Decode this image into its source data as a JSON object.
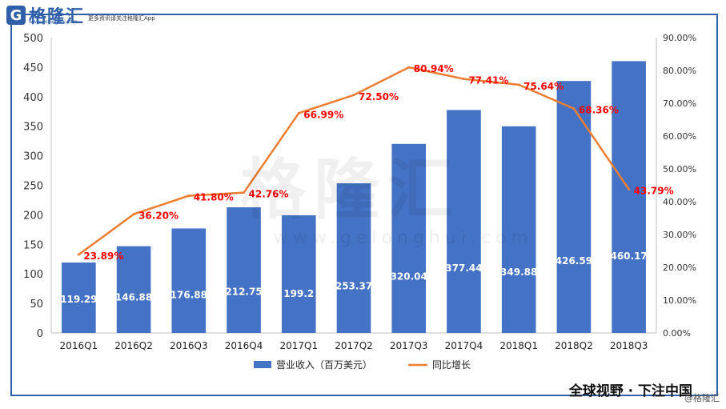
{
  "header": {
    "logo_mark": "G",
    "logo_text": "格隆汇",
    "logo_domain": "www.gelonghui.com",
    "slogan": "更多资讯请关注格隆汇App"
  },
  "watermark": {
    "text": "格隆汇",
    "url": "www.gelonghui.com"
  },
  "footer": {
    "slogan": "全球视野 · 下注中国",
    "credit": "@格隆汇"
  },
  "colors": {
    "bar": "#4472c4",
    "line": "#ed7d31",
    "pct_label": "#ff0000",
    "frame": "#2f5fa8"
  },
  "chart_data": {
    "type": "bar",
    "categories": [
      "2016Q1",
      "2016Q2",
      "2016Q3",
      "2016Q4",
      "2017Q1",
      "2017Q2",
      "2017Q3",
      "2017Q4",
      "2018Q1",
      "2018Q2",
      "2018Q3"
    ],
    "series": [
      {
        "name": "营业收入（百万美元）",
        "type": "bar",
        "axis": "left",
        "values": [
          119.29,
          146.88,
          176.88,
          212.75,
          199.2,
          253.37,
          320.04,
          377.44,
          349.88,
          426.59,
          460.17
        ],
        "labels": [
          "119.29",
          "146.88",
          "176.88",
          "212.75",
          "199.2",
          "253.37",
          "320.04",
          "377.44",
          "349.88",
          "426.59",
          "460.17"
        ]
      },
      {
        "name": "同比增长",
        "type": "line",
        "axis": "right",
        "values": [
          23.89,
          36.2,
          41.8,
          42.76,
          66.99,
          72.5,
          80.94,
          77.41,
          75.64,
          68.36,
          43.79
        ],
        "labels": [
          "23.89%",
          "36.20%",
          "41.80%",
          "42.76%",
          "66.99%",
          "72.50%",
          "80.94%",
          "77.41%",
          "75.64%",
          "68.36%",
          "43.79%"
        ]
      }
    ],
    "y_left": {
      "range": [
        0,
        500
      ],
      "ticks": [
        "0",
        "50",
        "100",
        "150",
        "200",
        "250",
        "300",
        "350",
        "400",
        "450",
        "500"
      ]
    },
    "y_right": {
      "range": [
        0,
        90
      ],
      "ticks": [
        "0.00%",
        "10.00%",
        "20.00%",
        "30.00%",
        "40.00%",
        "50.00%",
        "60.00%",
        "70.00%",
        "80.00%",
        "90.00%"
      ]
    },
    "grid": false,
    "legend": "bottom"
  }
}
